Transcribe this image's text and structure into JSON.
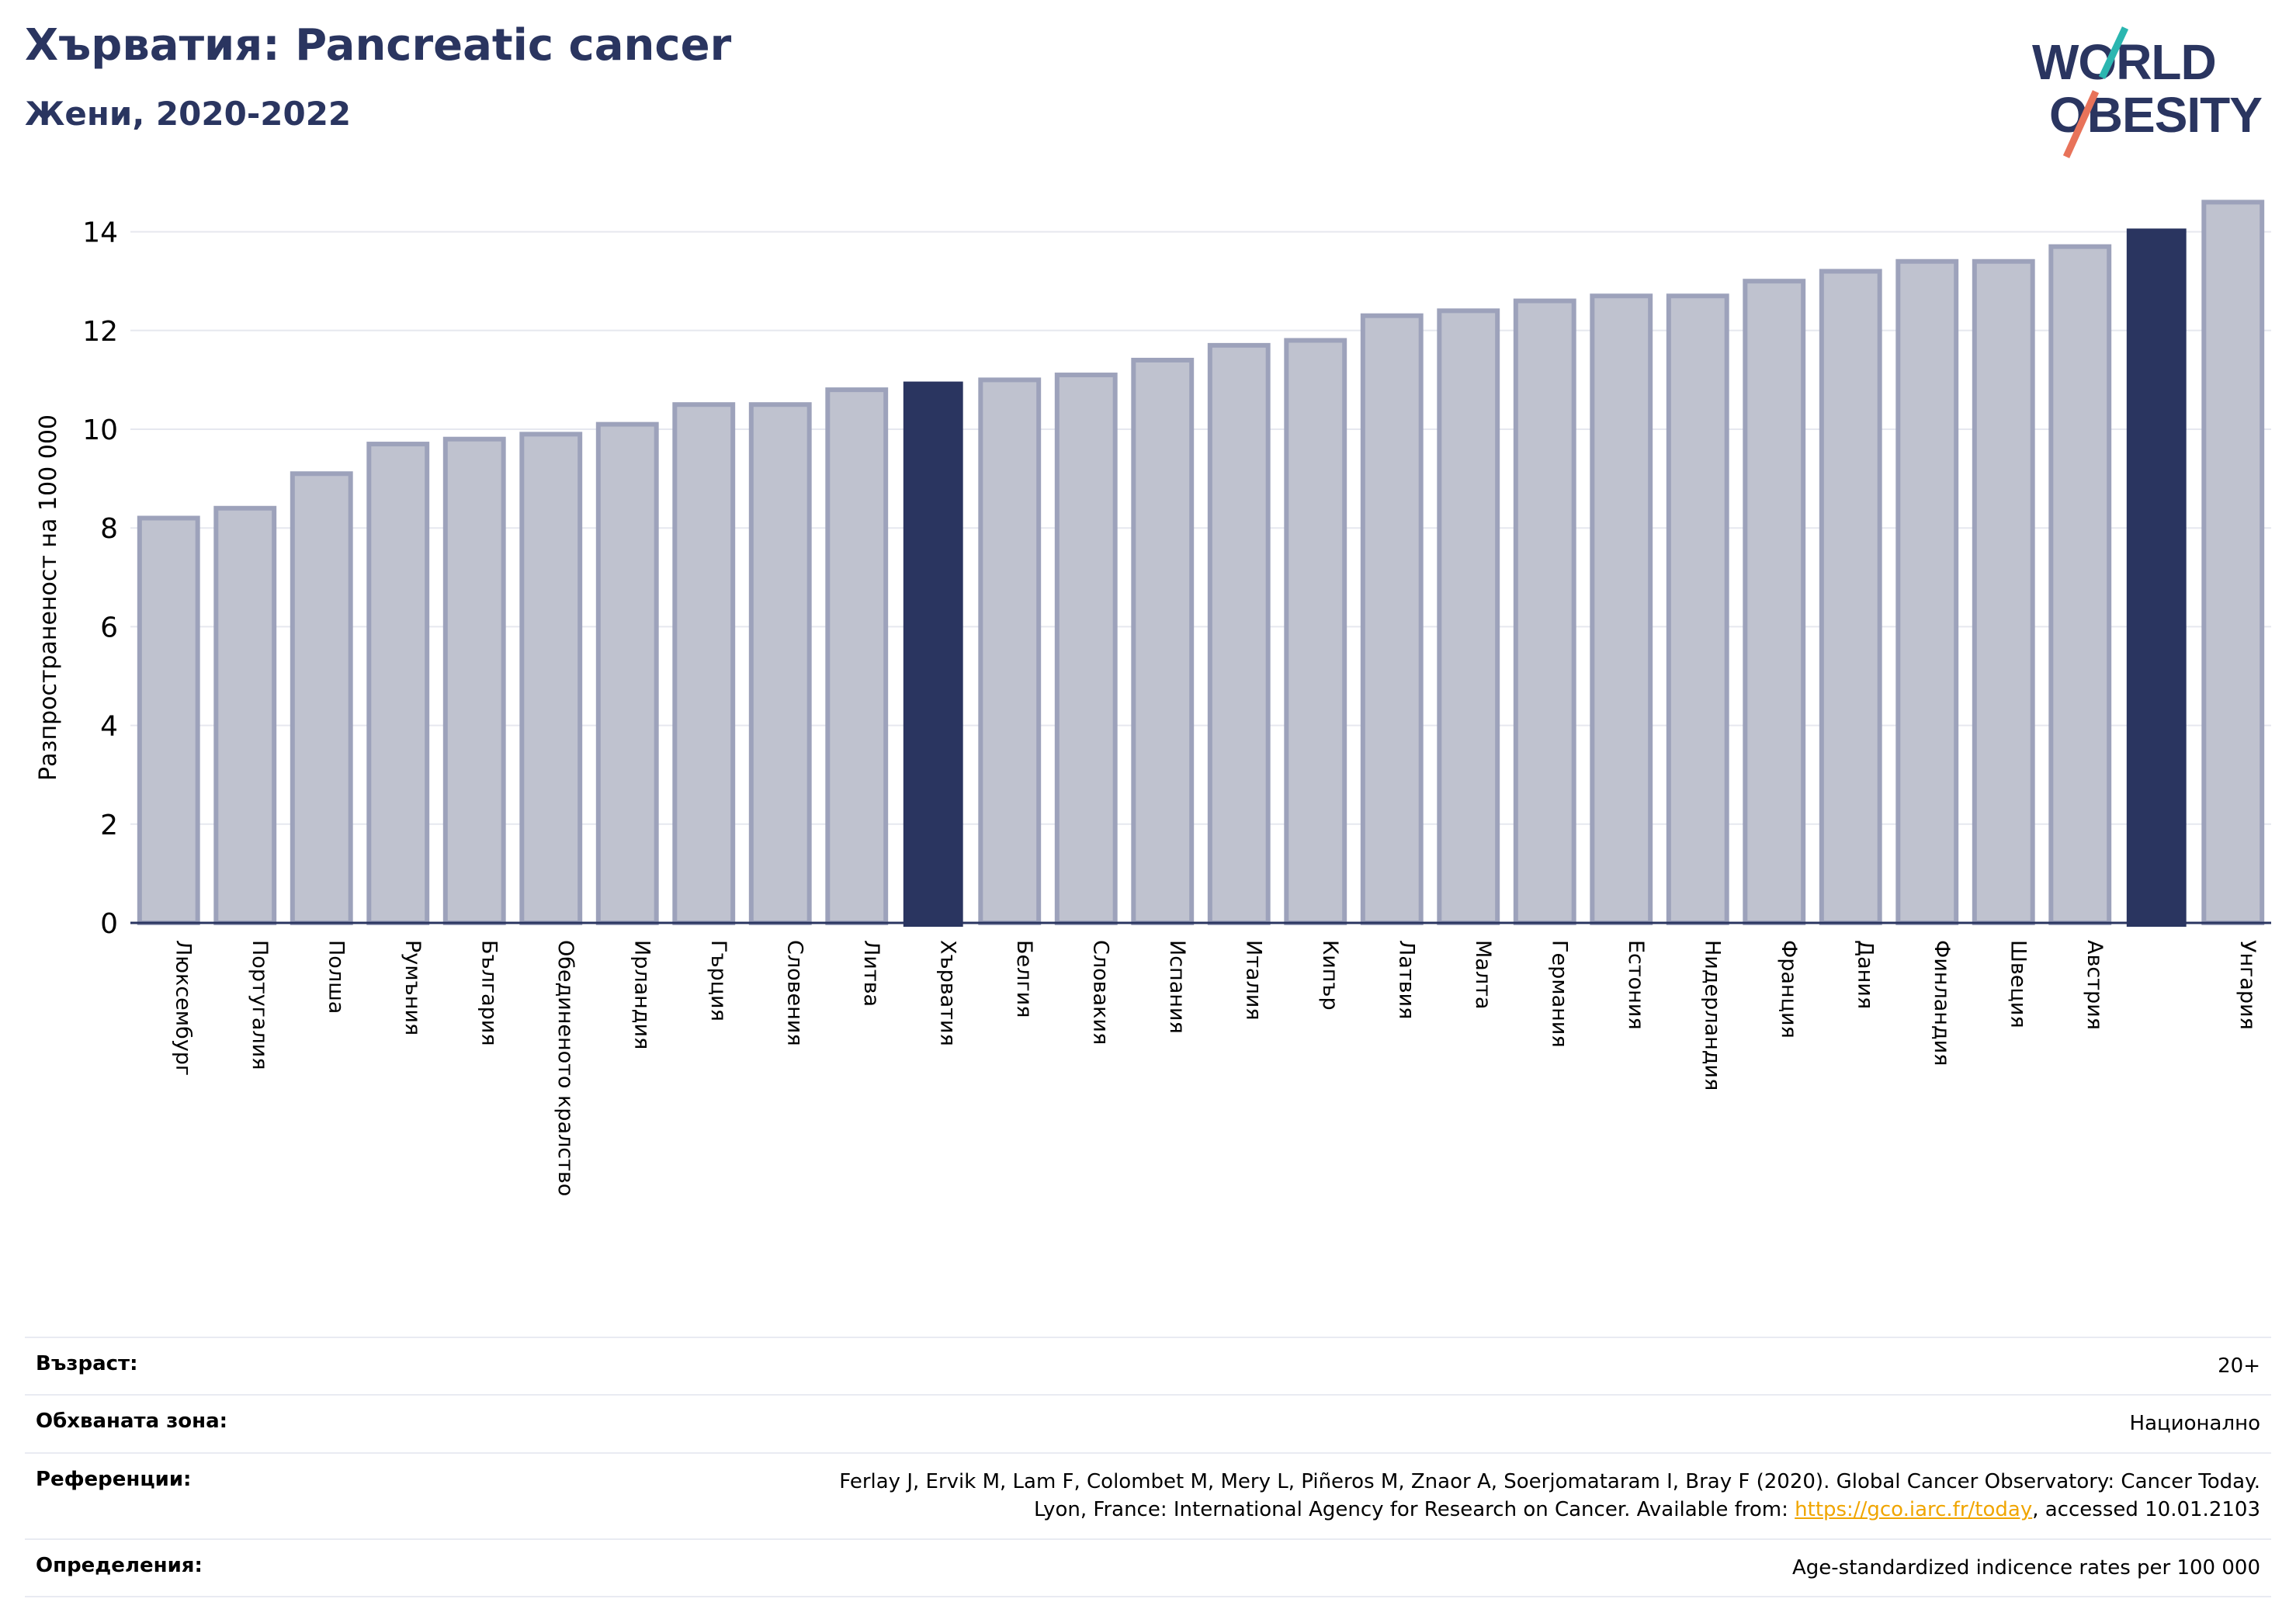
{
  "header": {
    "title": "Хърватия: Pancreatic cancer",
    "subtitle": "Жени, 2020-2022"
  },
  "logo": {
    "line1": "WORLD",
    "line2": "OBESITY"
  },
  "colors": {
    "bar_default": "#bfc2cf",
    "bar_default_edge": "#9da2bb",
    "bar_highlight": "#2a3560",
    "grid": "#e6e8ef",
    "axis": "#2a3560",
    "logo_slash_top": "#2bb6b0",
    "logo_slash_bottom": "#e8735a"
  },
  "chart_data": {
    "type": "bar",
    "title": "Хърватия: Pancreatic cancer",
    "subtitle": "Жени, 2020-2022",
    "ylabel": "Разпространеност  на 100 000",
    "xlabel": "",
    "ylim": [
      0,
      15
    ],
    "yticks": [
      0,
      2,
      4,
      6,
      8,
      10,
      12,
      14
    ],
    "grid": true,
    "categories": [
      "Люксембург",
      "Португалия",
      "Полша",
      "Румъния",
      "България",
      "Обединеното кралство",
      "Ирландия",
      "Гърция",
      "Словения",
      "Литва",
      "Хърватия",
      "Белгия",
      "Словакия",
      "Испания",
      "Италия",
      "Кипър",
      "Латвия",
      "Малта",
      "Германия",
      "Естония",
      "Нидерландия",
      "Франция",
      "Дания",
      "Финландия",
      "Швеция",
      "Австрия",
      "",
      "Унгария"
    ],
    "values": [
      8.2,
      8.4,
      9.1,
      9.7,
      9.8,
      9.9,
      10.1,
      10.5,
      10.5,
      10.8,
      10.95,
      11.0,
      11.1,
      11.4,
      11.7,
      11.8,
      12.3,
      12.4,
      12.6,
      12.7,
      12.7,
      13.0,
      13.2,
      13.4,
      13.4,
      13.7,
      14.05,
      14.6
    ],
    "highlighted": [
      10,
      26
    ]
  },
  "meta": {
    "rows": [
      {
        "key": "Възраст:",
        "value": "20+"
      },
      {
        "key": "Обхваната зона:",
        "value": "Национално"
      },
      {
        "key": "Референции:",
        "value_line1": "Ferlay J, Ervik M, Lam F, Colombet M, Mery L, Piñeros M, Znaor A, Soerjomataram I, Bray F (2020). Global Cancer Observatory: Cancer Today.",
        "value_line2_prefix": "Lyon, France: International Agency for Research on Cancer. Available from: ",
        "link": "https://gco.iarc.fr/today",
        "value_line2_suffix": ", accessed 10.01.2103"
      },
      {
        "key": "Определения:",
        "value": "Age-standardized indicence rates per 100 000"
      }
    ]
  }
}
